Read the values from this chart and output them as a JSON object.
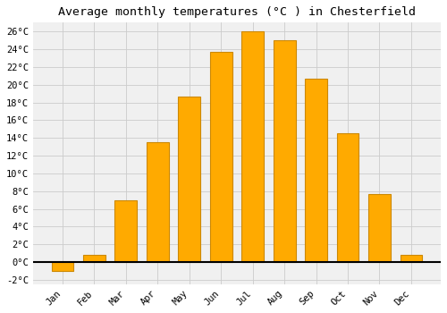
{
  "title": "Average monthly temperatures (°C ) in Chesterfield",
  "months": [
    "Jan",
    "Feb",
    "Mar",
    "Apr",
    "May",
    "Jun",
    "Jul",
    "Aug",
    "Sep",
    "Oct",
    "Nov",
    "Dec"
  ],
  "temperatures": [
    -1.0,
    0.8,
    7.0,
    13.5,
    18.7,
    23.7,
    26.0,
    25.0,
    20.7,
    14.5,
    7.7,
    0.8
  ],
  "bar_color": "#FFAA00",
  "bar_edge_color": "#CC8800",
  "ylim": [
    -2.5,
    27
  ],
  "yticks": [
    -2,
    0,
    2,
    4,
    6,
    8,
    10,
    12,
    14,
    16,
    18,
    20,
    22,
    24,
    26
  ],
  "plot_bg_color": "#F0F0F0",
  "fig_bg_color": "#FFFFFF",
  "grid_color": "#CCCCCC",
  "title_fontsize": 9.5,
  "tick_fontsize": 7.5,
  "font_family": "monospace"
}
